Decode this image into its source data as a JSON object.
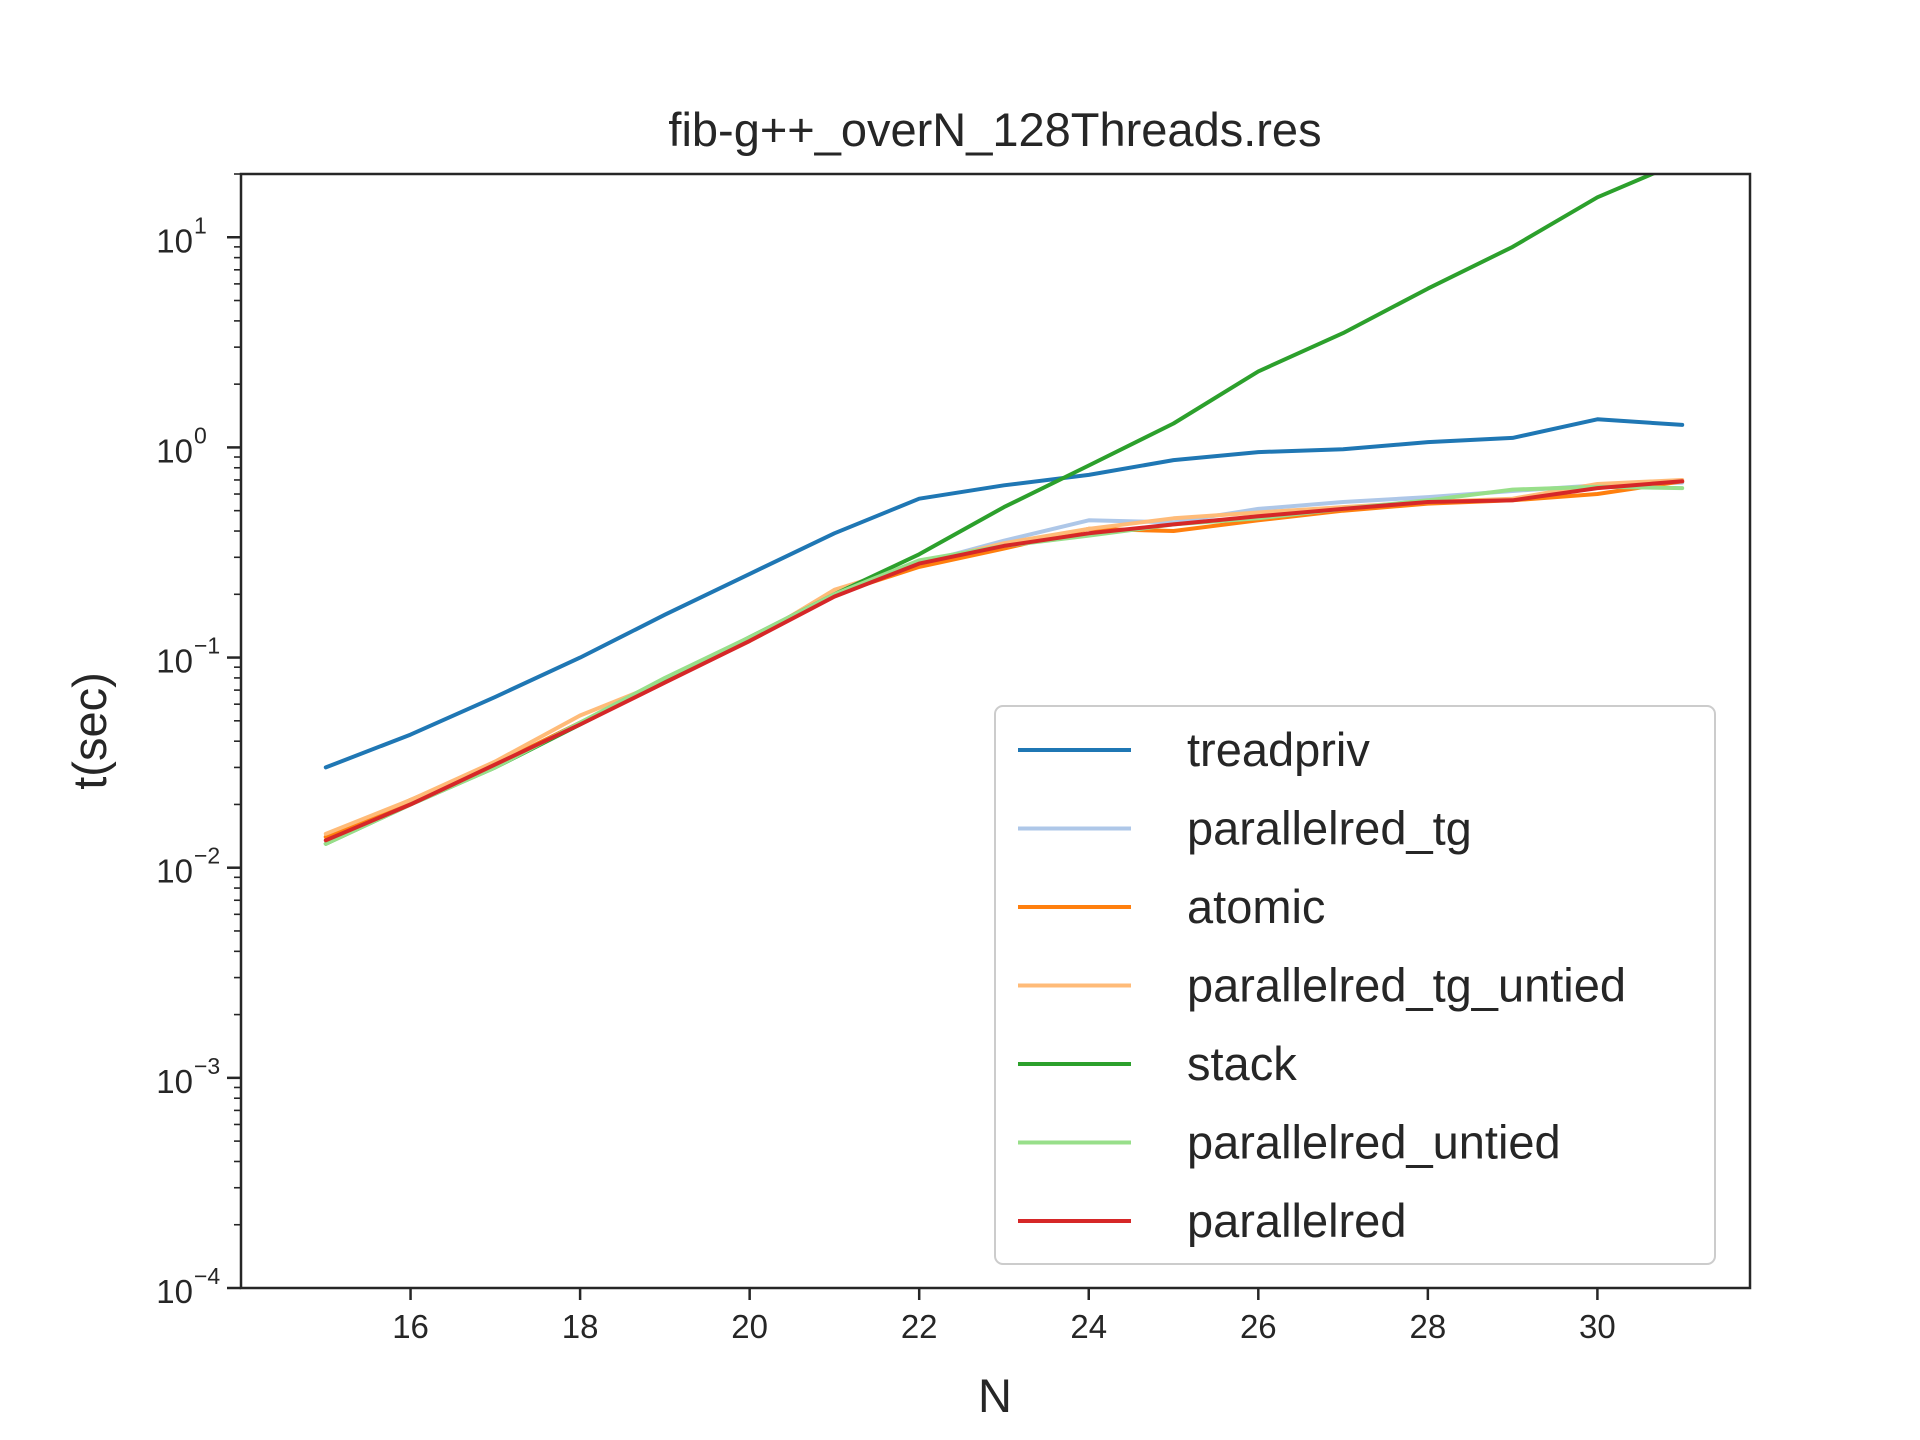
{
  "chart_data": {
    "type": "line",
    "title": "fib-g++_overN_128Threads.res",
    "xlabel": "N",
    "ylabel": "t(sec)",
    "yscale": "log",
    "xlim": [
      14.0,
      31.8
    ],
    "ylim": [
      0.0001,
      20
    ],
    "x_ticks": [
      16,
      18,
      20,
      22,
      24,
      26,
      28,
      30
    ],
    "y_ticks": [
      {
        "value": 0.0001,
        "base": "10",
        "exp": "−4"
      },
      {
        "value": 0.001,
        "base": "10",
        "exp": "−3"
      },
      {
        "value": 0.01,
        "base": "10",
        "exp": "−2"
      },
      {
        "value": 0.1,
        "base": "10",
        "exp": "−1"
      },
      {
        "value": 1,
        "base": "10",
        "exp": "0"
      },
      {
        "value": 10,
        "base": "10",
        "exp": "1"
      }
    ],
    "grid": false,
    "legend_position": "lower-right",
    "x": [
      15,
      16,
      17,
      18,
      19,
      20,
      21,
      22,
      23,
      24,
      25,
      26,
      27,
      28,
      29,
      30,
      31
    ],
    "series": [
      {
        "name": "treadpriv",
        "color": "#1f77b4",
        "values": [
          0.03,
          0.043,
          0.065,
          0.1,
          0.16,
          0.25,
          0.39,
          0.57,
          0.66,
          0.74,
          0.87,
          0.95,
          0.98,
          1.06,
          1.11,
          1.36,
          1.28
        ]
      },
      {
        "name": "parallelred_tg",
        "color": "#aec7e8",
        "values": [
          0.014,
          0.021,
          0.031,
          0.049,
          0.077,
          0.12,
          0.2,
          0.28,
          0.36,
          0.45,
          0.44,
          0.51,
          0.55,
          0.58,
          0.62,
          0.66,
          0.68
        ]
      },
      {
        "name": "atomic",
        "color": "#ff7f0e",
        "values": [
          0.014,
          0.021,
          0.031,
          0.049,
          0.077,
          0.12,
          0.2,
          0.27,
          0.33,
          0.41,
          0.4,
          0.45,
          0.5,
          0.54,
          0.56,
          0.6,
          0.69
        ]
      },
      {
        "name": "parallelred_tg_untied",
        "color": "#ffbb78",
        "values": [
          0.0145,
          0.021,
          0.032,
          0.053,
          0.077,
          0.12,
          0.21,
          0.28,
          0.35,
          0.41,
          0.46,
          0.49,
          0.52,
          0.55,
          0.57,
          0.67,
          0.7
        ]
      },
      {
        "name": "stack",
        "color": "#2ca02c",
        "values": [
          0.013,
          0.02,
          0.03,
          0.048,
          0.077,
          0.125,
          0.2,
          0.31,
          0.52,
          0.82,
          1.3,
          2.3,
          3.5,
          5.7,
          9.0,
          15.5,
          23.0
        ]
      },
      {
        "name": "parallelred_untied",
        "color": "#98df8a",
        "values": [
          0.013,
          0.02,
          0.03,
          0.049,
          0.08,
          0.125,
          0.2,
          0.29,
          0.34,
          0.38,
          0.43,
          0.46,
          0.51,
          0.56,
          0.63,
          0.65,
          0.64
        ]
      },
      {
        "name": "parallelred",
        "color": "#d62728",
        "values": [
          0.0135,
          0.02,
          0.031,
          0.048,
          0.076,
          0.12,
          0.195,
          0.28,
          0.34,
          0.39,
          0.43,
          0.47,
          0.51,
          0.55,
          0.56,
          0.64,
          0.69
        ]
      }
    ]
  }
}
